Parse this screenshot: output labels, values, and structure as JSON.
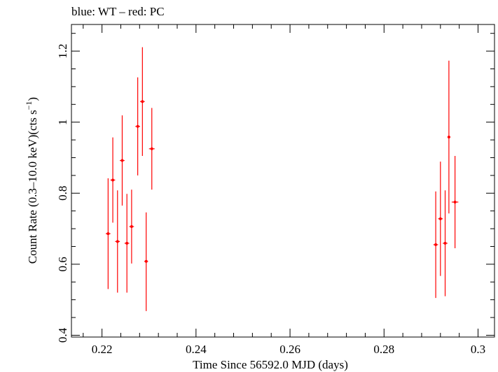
{
  "chart_data": {
    "type": "scatter",
    "title": "blue: WT – red: PC",
    "xlabel": "Time Since 56592.0 MJD (days)",
    "ylabel_main": "Count Rate (0.3–10.0 keV)(cts s",
    "ylabel_sup": "−1",
    "ylabel_close": ")",
    "xlim": [
      0.2135,
      0.3035
    ],
    "ylim": [
      0.395,
      1.275
    ],
    "xticks": [
      {
        "value": 0.22,
        "label": "0.22"
      },
      {
        "value": 0.24,
        "label": "0.24"
      },
      {
        "value": 0.26,
        "label": "0.26"
      },
      {
        "value": 0.28,
        "label": "0.28"
      },
      {
        "value": 0.3,
        "label": "0.3"
      }
    ],
    "yticks": [
      {
        "value": 0.4,
        "label": "0.4"
      },
      {
        "value": 0.6,
        "label": "0.6"
      },
      {
        "value": 0.8,
        "label": "0.8"
      },
      {
        "value": 1.0,
        "label": "1"
      },
      {
        "value": 1.2,
        "label": "1.2"
      }
    ],
    "grid": false,
    "series": [
      {
        "color": "#ff0000",
        "points": [
          {
            "x": 0.2213,
            "xerr": 0.0005,
            "y": 0.686,
            "ylo": 0.53,
            "yhi": 0.842
          },
          {
            "x": 0.2223,
            "xerr": 0.0005,
            "y": 0.837,
            "ylo": 0.717,
            "yhi": 0.957
          },
          {
            "x": 0.2233,
            "xerr": 0.0005,
            "y": 0.664,
            "ylo": 0.52,
            "yhi": 0.808
          },
          {
            "x": 0.2243,
            "xerr": 0.0005,
            "y": 0.892,
            "ylo": 0.765,
            "yhi": 1.019
          },
          {
            "x": 0.2253,
            "xerr": 0.0005,
            "y": 0.659,
            "ylo": 0.52,
            "yhi": 0.798
          },
          {
            "x": 0.2263,
            "xerr": 0.0005,
            "y": 0.706,
            "ylo": 0.602,
            "yhi": 0.81
          },
          {
            "x": 0.2276,
            "xerr": 0.0005,
            "y": 0.988,
            "ylo": 0.85,
            "yhi": 1.126
          },
          {
            "x": 0.2286,
            "xerr": 0.0005,
            "y": 1.058,
            "ylo": 0.905,
            "yhi": 1.211
          },
          {
            "x": 0.2294,
            "xerr": 0.0004,
            "y": 0.608,
            "ylo": 0.468,
            "yhi": 0.746
          },
          {
            "x": 0.2306,
            "xerr": 0.0006,
            "y": 0.925,
            "ylo": 0.81,
            "yhi": 1.04
          },
          {
            "x": 0.291,
            "xerr": 0.0005,
            "y": 0.655,
            "ylo": 0.505,
            "yhi": 0.805
          },
          {
            "x": 0.292,
            "xerr": 0.0005,
            "y": 0.728,
            "ylo": 0.567,
            "yhi": 0.889
          },
          {
            "x": 0.293,
            "xerr": 0.0005,
            "y": 0.659,
            "ylo": 0.51,
            "yhi": 0.808
          },
          {
            "x": 0.2938,
            "xerr": 0.0003,
            "y": 0.958,
            "ylo": 0.743,
            "yhi": 1.173
          },
          {
            "x": 0.2951,
            "xerr": 0.0007,
            "y": 0.775,
            "ylo": 0.645,
            "yhi": 0.905
          }
        ]
      }
    ]
  }
}
